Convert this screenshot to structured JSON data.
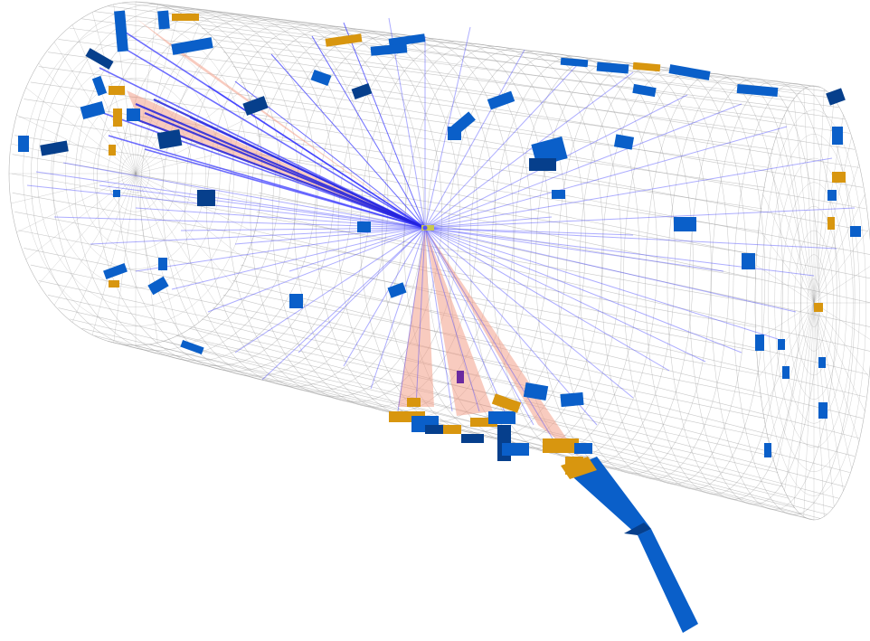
{
  "colors": {
    "background": "#ffffff",
    "detector_grid": "#9a9a9a",
    "track": "#3b3bff",
    "jet_cone": "#f2a08a",
    "hcal_tower": "#0a5fc9",
    "hcal_tower_dark": "#063f8c",
    "ecal_tower": "#d8960f",
    "muon": "#7a2a9a"
  },
  "scene": {
    "description_items": [
      "cylindrical-detector-wireframe",
      "charged-tracks",
      "jet-cones",
      "calorimeter-towers",
      "vertex"
    ],
    "primary_track_count": 60,
    "jet_count": 4
  }
}
